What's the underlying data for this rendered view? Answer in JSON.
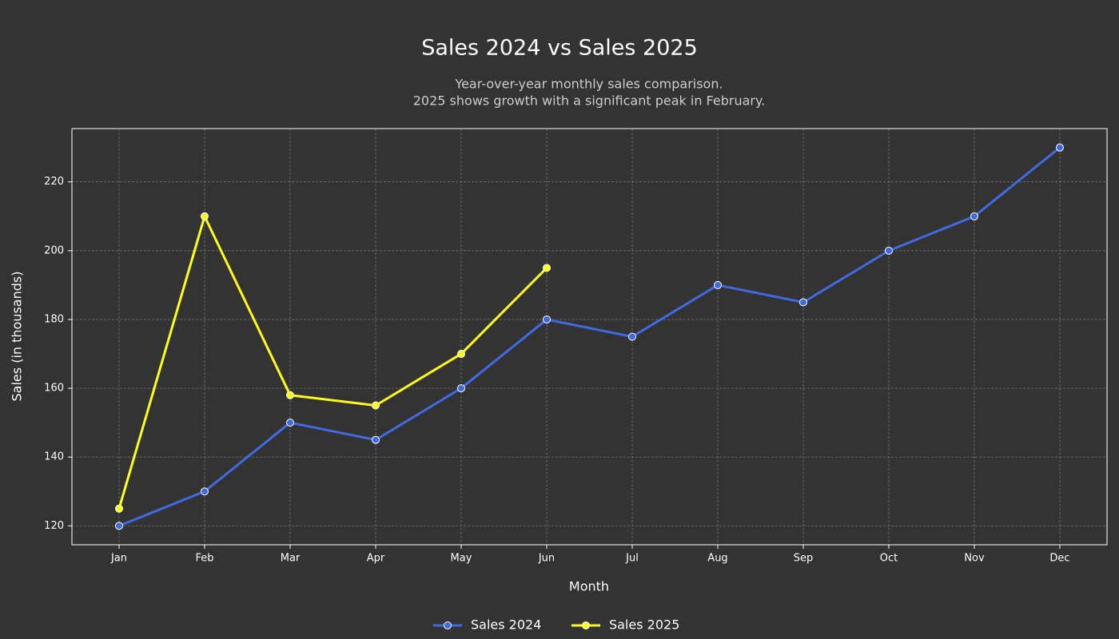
{
  "chart_data": {
    "type": "line",
    "title": "Sales 2024 vs Sales 2025",
    "subtitle": [
      "Year-over-year monthly sales comparison.",
      "2025 shows growth with a significant peak in February."
    ],
    "x_label": "Month",
    "y_label": "Sales (in thousands)",
    "categories": [
      "Jan",
      "Feb",
      "Mar",
      "Apr",
      "May",
      "Jun",
      "Jul",
      "Aug",
      "Sep",
      "Oct",
      "Nov",
      "Dec"
    ],
    "series": [
      {
        "name": "Sales 2024",
        "color": "#4169e1",
        "values": [
          120,
          130,
          150,
          145,
          160,
          180,
          175,
          190,
          185,
          200,
          210,
          230
        ]
      },
      {
        "name": "Sales 2025",
        "color": "#ffff1a",
        "values": [
          125,
          210,
          158,
          155,
          170,
          195,
          null,
          null,
          null,
          null,
          null,
          null
        ]
      }
    ],
    "ylim": [
      114.5,
      235.5
    ],
    "yticks": [
      120,
      140,
      160,
      180,
      200,
      220
    ],
    "grid": true,
    "legend": "bottom"
  }
}
